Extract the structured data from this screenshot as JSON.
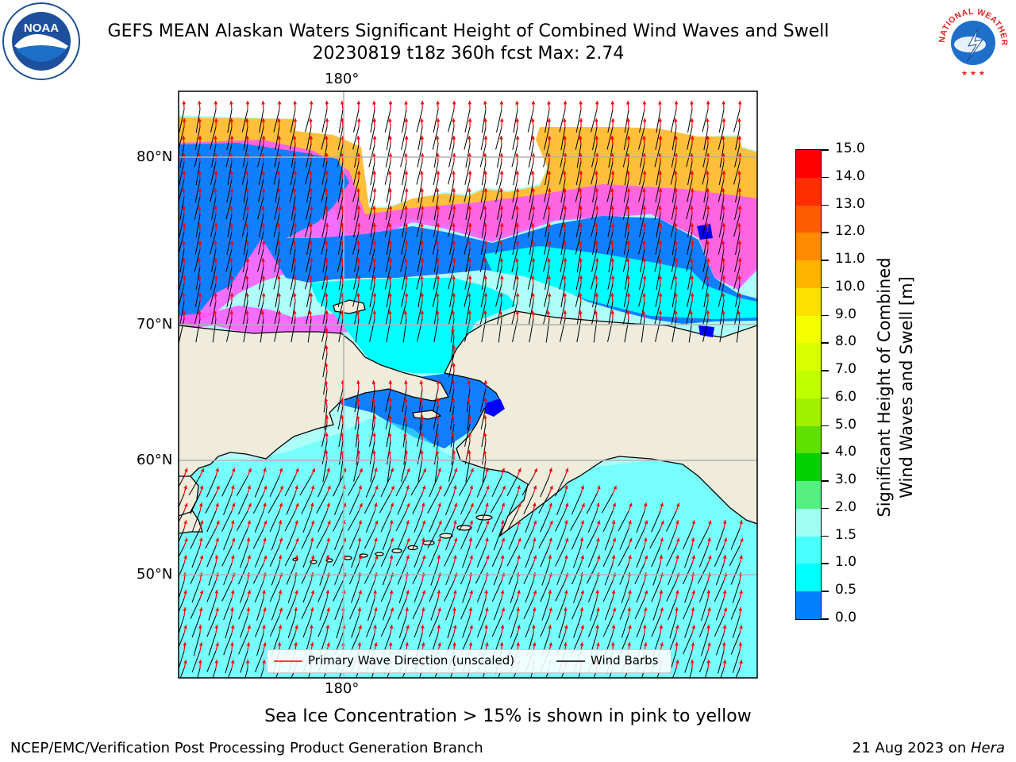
{
  "title": {
    "line1": "GEFS MEAN Alaskan Waters Significant Height of Combined Wind Waves and Swell",
    "line2": "20230819 t18z 360h fcst   Max: 2.74"
  },
  "logos": {
    "left": {
      "text": "NOAA",
      "icon": "noaa-logo-icon",
      "color": "#1d4f9c"
    },
    "right": {
      "text": "NATIONAL WEATHER SERVICE",
      "icon": "nws-logo-icon",
      "color": "#e52521"
    }
  },
  "map": {
    "lon_top_label": "180°",
    "lon_bottom_label": "180°",
    "lat_labels": [
      "80°N",
      "70°N",
      "60°N",
      "50°N"
    ],
    "land_color": "#efecdc",
    "grid_color": "#b0b0b0"
  },
  "legend": {
    "wave_label": "Primary Wave Direction (unscaled)",
    "wave_color": "#ff0000",
    "barb_label": "Wind Barbs",
    "barb_color": "#000000"
  },
  "colorbar": {
    "title_line1": "Significant Height of Combined",
    "title_line2": "Wind Waves and Swell [m]",
    "ticks": [
      "15.0",
      "14.0",
      "13.0",
      "12.0",
      "11.0",
      "10.0",
      "9.0",
      "8.0",
      "7.0",
      "6.0",
      "5.0",
      "4.0",
      "3.0",
      "2.0",
      "1.5",
      "1.0",
      "0.5",
      "0.0"
    ],
    "colors_top_to_bottom": [
      "#ff0000",
      "#ff2e00",
      "#ff5c00",
      "#ff8a00",
      "#ffb400",
      "#ffe100",
      "#f5ff00",
      "#d8ff00",
      "#c0ff00",
      "#a0f000",
      "#60e000",
      "#00d000",
      "#55f080",
      "#9ffff0",
      "#49ffff",
      "#00ffff",
      "#0080ff",
      "#0000ff"
    ],
    "boundaries": [
      15.0,
      14.0,
      13.0,
      12.0,
      11.0,
      10.0,
      9.0,
      8.0,
      7.0,
      6.0,
      5.0,
      4.0,
      3.0,
      2.0,
      1.5,
      1.0,
      0.5,
      0.0
    ]
  },
  "note": "Sea Ice Concentration > 15% is shown in pink to yellow",
  "footer": {
    "left": "NCEP/EMC/Verification Post Processing Product Generation Branch",
    "right_date": "21 Aug 2023 on ",
    "right_host": "Hera"
  }
}
